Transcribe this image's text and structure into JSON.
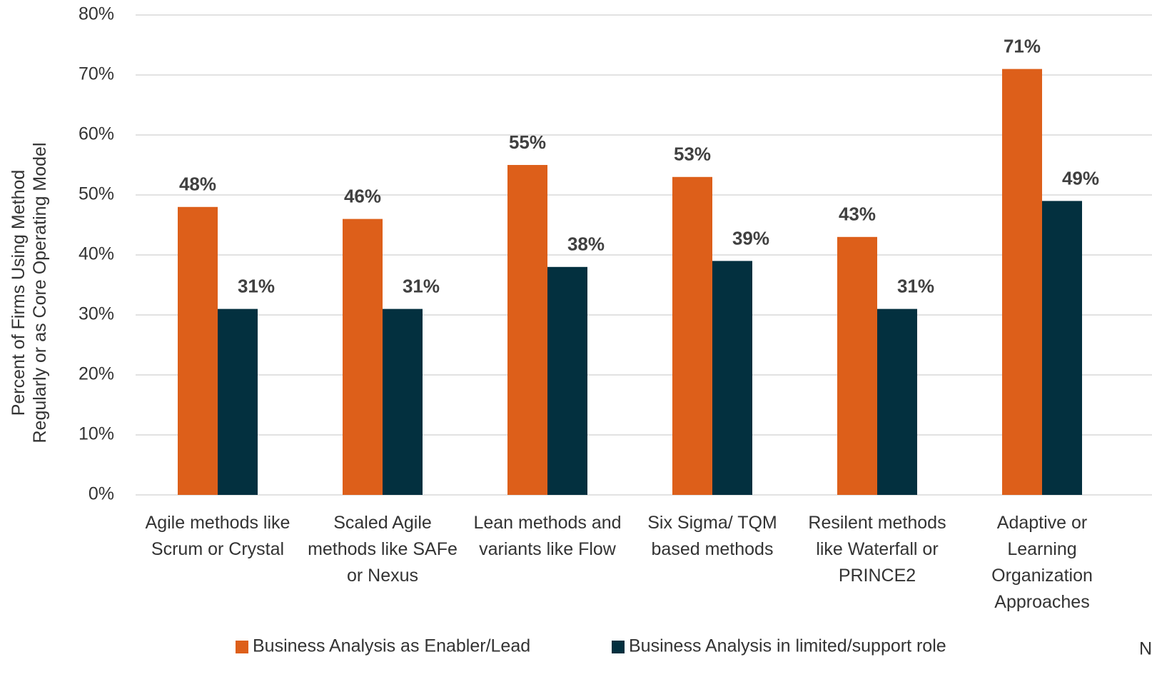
{
  "chart_data": {
    "type": "bar",
    "y_label": "Percent of Firms Using Method Regularly or as Core Operating Model",
    "categories": [
      "Agile methods like Scrum or Crystal",
      "Scaled Agile methods like SAFe or Nexus",
      "Lean methods and variants like Flow",
      "Six Sigma/ TQM based methods",
      "Resilent methods like Waterfall or PRINCE2",
      "Adaptive or Learning Organization Approaches"
    ],
    "series": [
      {
        "name": "Business Analysis as Enabler/Lead",
        "color": "#dd5f1a",
        "values": [
          48,
          46,
          55,
          53,
          43,
          71
        ],
        "value_labels": [
          "48%",
          "46%",
          "55%",
          "53%",
          "43%",
          "71%"
        ]
      },
      {
        "name": "Business Analysis in limited/support role",
        "color": "#03303f",
        "values": [
          31,
          31,
          38,
          39,
          31,
          49
        ],
        "value_labels": [
          "31%",
          "31%",
          "38%",
          "39%",
          "31%",
          "49%"
        ]
      }
    ],
    "ylim": [
      0,
      80
    ],
    "yticks": [
      {
        "value": 0,
        "label": "0%"
      },
      {
        "value": 10,
        "label": "10%"
      },
      {
        "value": 20,
        "label": "20%"
      },
      {
        "value": 30,
        "label": "30%"
      },
      {
        "value": 40,
        "label": "40%"
      },
      {
        "value": 50,
        "label": "50%"
      },
      {
        "value": 60,
        "label": "60%"
      },
      {
        "value": 70,
        "label": "70%"
      },
      {
        "value": 80,
        "label": "80%"
      }
    ],
    "grid": true,
    "legend": "bottom",
    "note": "N"
  }
}
